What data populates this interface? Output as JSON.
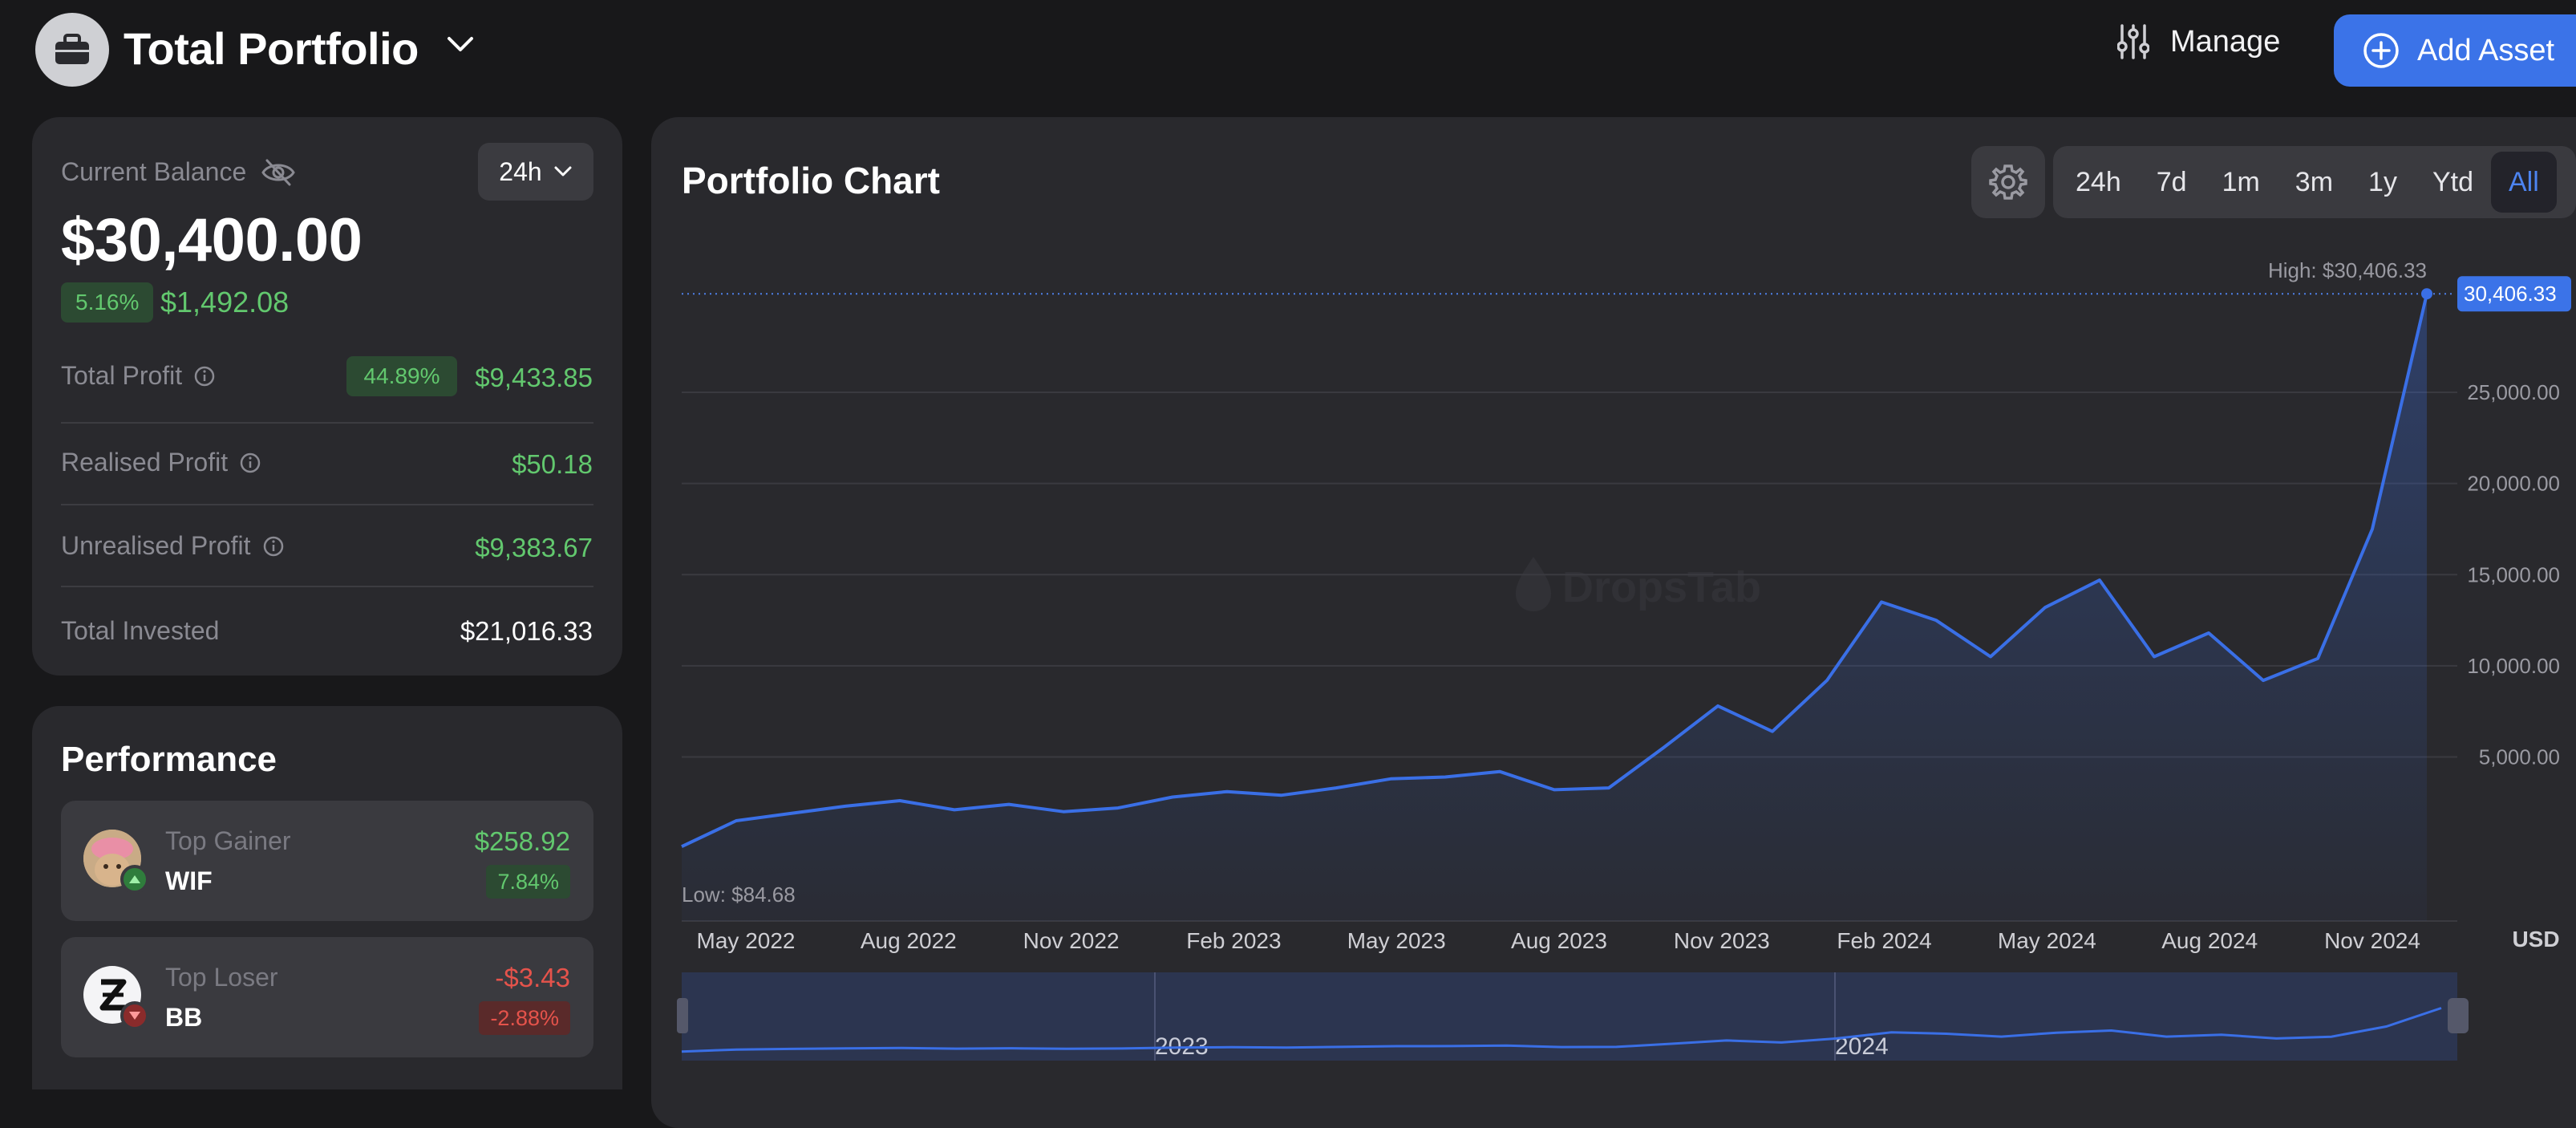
{
  "header": {
    "title": "Total Portfolio",
    "manage_label": "Manage",
    "add_asset_label": "Add Asset"
  },
  "balance": {
    "label": "Current Balance",
    "period": "24h",
    "value": "$30,400.00",
    "change_pct": "5.16%",
    "change_abs": "$1,492.08",
    "rows": [
      {
        "label": "Total Profit",
        "badge": "44.89%",
        "value": "$9,433.85"
      },
      {
        "label": "Realised Profit",
        "value": "$50.18"
      },
      {
        "label": "Unrealised Profit",
        "value": "$9,383.67"
      },
      {
        "label": "Total Invested",
        "value": "$21,016.33"
      }
    ]
  },
  "performance": {
    "title": "Performance",
    "gainer": {
      "kind": "Top Gainer",
      "symbol": "WIF",
      "amount": "$258.92",
      "pct": "7.84%"
    },
    "loser": {
      "kind": "Top Loser",
      "symbol": "BB",
      "amount": "-$3.43",
      "pct": "-2.88%"
    }
  },
  "chart": {
    "title": "Portfolio Chart",
    "ranges": [
      "24h",
      "7d",
      "1m",
      "3m",
      "1y",
      "Ytd",
      "All"
    ],
    "active_range": "All",
    "watermark": "DropsTab",
    "currency": "USD",
    "high_label": "High: $30,406.33",
    "low_label": "Low: $84.68",
    "current_value_label": "30,406.33",
    "navigator_labels": [
      "2023",
      "2024"
    ]
  },
  "colors": {
    "accent": "#3b73e8",
    "line": "#3a6fe6",
    "positive": "#62c86e",
    "negative": "#e5534b"
  },
  "chart_data": {
    "type": "area",
    "title": "Portfolio Chart",
    "ylabel": "USD",
    "y_ticks": [
      "5,000.00",
      "10,000.00",
      "15,000.00",
      "20,000.00",
      "25,000.00"
    ],
    "x_ticks": [
      "May 2022",
      "Aug 2022",
      "Nov 2022",
      "Feb 2023",
      "May 2023",
      "Aug 2023",
      "Nov 2023",
      "Feb 2024",
      "May 2024",
      "Aug 2024",
      "Nov 2024"
    ],
    "ylim": [
      -4000,
      32000
    ],
    "grid": true,
    "x": [
      "2022-04",
      "2022-05",
      "2022-06",
      "2022-07",
      "2022-08",
      "2022-09",
      "2022-10",
      "2022-11",
      "2022-12",
      "2023-01",
      "2023-02",
      "2023-03",
      "2023-04",
      "2023-05",
      "2023-06",
      "2023-07",
      "2023-08",
      "2023-09",
      "2023-10",
      "2023-11",
      "2023-12",
      "2024-01",
      "2024-02",
      "2024-03",
      "2024-04",
      "2024-05",
      "2024-06",
      "2024-07",
      "2024-08",
      "2024-09",
      "2024-10",
      "2024-11",
      "2024-12"
    ],
    "values": [
      85,
      1500,
      1900,
      2300,
      2600,
      2100,
      2400,
      2000,
      2200,
      2800,
      3100,
      2900,
      3300,
      3800,
      3900,
      4200,
      3200,
      3300,
      5500,
      7800,
      6400,
      9200,
      13500,
      12500,
      10500,
      13200,
      14700,
      10500,
      11800,
      9200,
      10400,
      17500,
      30406
    ],
    "high": 30406.33,
    "low": 84.68
  }
}
